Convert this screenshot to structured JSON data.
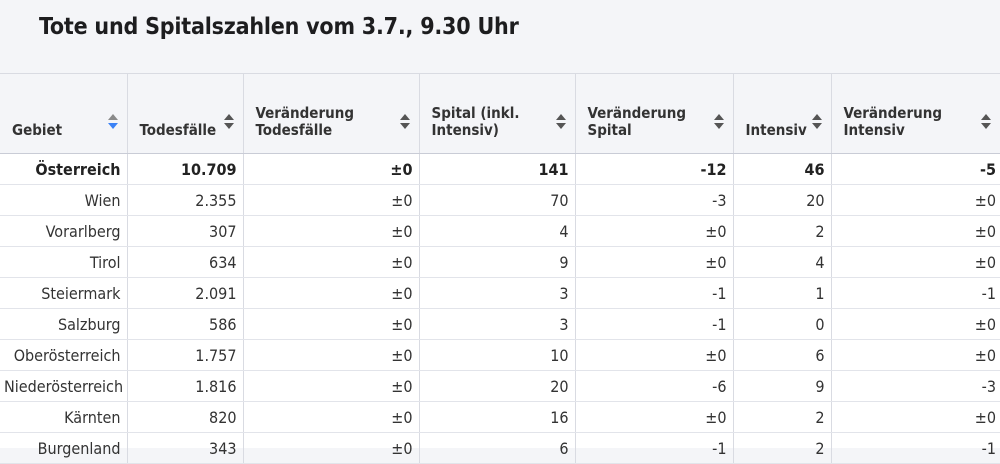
{
  "title": "Tote und Spitalszahlen vom 3.7., 9.30 Uhr",
  "columns": [
    {
      "label": "Gebiet",
      "sort": "active"
    },
    {
      "label": "Todesfälle",
      "sort": "none"
    },
    {
      "label": "Veränderung Todesfälle",
      "sort": "none"
    },
    {
      "label": "Spital (inkl. Intensiv)",
      "sort": "none"
    },
    {
      "label": "Veränderung Spital",
      "sort": "none"
    },
    {
      "label": "Intensiv",
      "sort": "none"
    },
    {
      "label": "Veränderung Intensiv",
      "sort": "none"
    }
  ],
  "rows": [
    [
      "Österreich",
      "10.709",
      "±0",
      "141",
      "-12",
      "46",
      "-5"
    ],
    [
      "Wien",
      "2.355",
      "±0",
      "70",
      "-3",
      "20",
      "±0"
    ],
    [
      "Vorarlberg",
      "307",
      "±0",
      "4",
      "±0",
      "2",
      "±0"
    ],
    [
      "Tirol",
      "634",
      "±0",
      "9",
      "±0",
      "4",
      "±0"
    ],
    [
      "Steiermark",
      "2.091",
      "±0",
      "3",
      "-1",
      "1",
      "-1"
    ],
    [
      "Salzburg",
      "586",
      "±0",
      "3",
      "-1",
      "0",
      "±0"
    ],
    [
      "Oberösterreich",
      "1.757",
      "±0",
      "10",
      "±0",
      "6",
      "±0"
    ],
    [
      "Niederösterreich",
      "1.816",
      "±0",
      "20",
      "-6",
      "9",
      "-3"
    ],
    [
      "Kärnten",
      "820",
      "±0",
      "16",
      "±0",
      "2",
      "±0"
    ],
    [
      "Burgenland",
      "343",
      "±0",
      "6",
      "-1",
      "2",
      "-1"
    ]
  ]
}
